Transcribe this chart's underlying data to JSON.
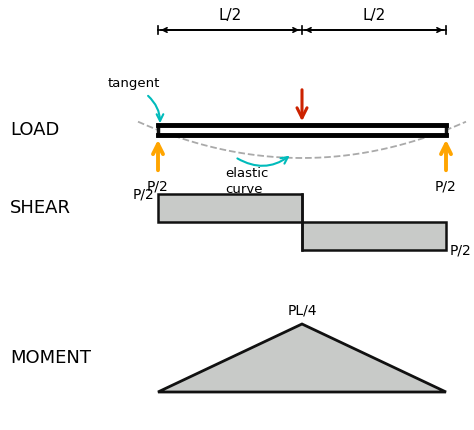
{
  "bg_color": "#ffffff",
  "beam_color": "#111111",
  "beam_fill": "#ffffff",
  "orange_color": "#FFA500",
  "red_color": "#CC2200",
  "cyan_color": "#00BBBB",
  "gray_color": "#aaaaaa",
  "shear_box_color": "#c8cac8",
  "shear_box_edge": "#111111",
  "moment_fill": "#c8cac8",
  "moment_edge": "#111111",
  "label_load": "LOAD",
  "label_shear": "SHEAR",
  "label_moment": "MOMENT",
  "label_tangent": "tangent",
  "label_elastic": "elastic\ncurve",
  "label_p2_left": "P/2",
  "label_p2_right": "P/2",
  "label_p2_shear_top": "P/2",
  "label_p2_shear_bot": "P/2",
  "label_pl4": "PL/4",
  "label_l2_left": "L/2",
  "label_l2_right": "L/2"
}
